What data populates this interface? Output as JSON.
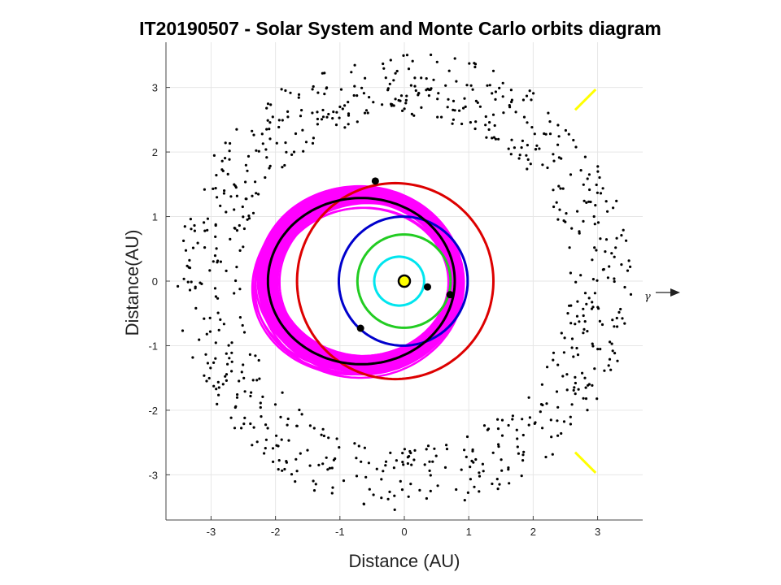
{
  "chart_data": {
    "type": "scatter",
    "title": "IT20190507 - Solar System and Monte Carlo orbits diagram",
    "xlabel": "Distance (AU)",
    "ylabel": "Distance(AU)",
    "xlim": [
      -3.7,
      3.7
    ],
    "ylim": [
      -3.7,
      3.7
    ],
    "xticks": [
      "-3",
      "-2",
      "-1",
      "0",
      "1",
      "2",
      "3"
    ],
    "yticks": [
      "-3",
      "-2",
      "-1",
      "0",
      "1",
      "2",
      "3"
    ],
    "grid": true,
    "equinox_label": "γ",
    "sun": {
      "x": 0,
      "y": 0,
      "color": "#ffff00"
    },
    "planet_orbits": [
      {
        "a": 0.387,
        "e": 0.206,
        "color": "#00e5ee"
      },
      {
        "a": 0.723,
        "e": 0.007,
        "color": "#22cc22"
      },
      {
        "a": 1.0,
        "e": 0.017,
        "color": "#0000cc"
      },
      {
        "a": 1.524,
        "e": 0.093,
        "color": "#dd0000"
      }
    ],
    "planet_positions": [
      {
        "x": 0.36,
        "y": -0.09
      },
      {
        "x": 0.71,
        "y": -0.21
      },
      {
        "x": -0.68,
        "y": -0.73
      },
      {
        "x": -0.45,
        "y": 1.55
      }
    ],
    "monte_carlo_orbits": {
      "color": "#ff00ff",
      "count": 60,
      "a": [
        1.35,
        1.6
      ],
      "e": [
        0.4,
        0.52
      ],
      "perihelion_angle_deg": [
        -8,
        6
      ]
    },
    "object_orbit": {
      "a": 1.45,
      "e": 0.46,
      "perihelion_angle_deg": 0,
      "color": "#000000"
    },
    "outer_swarm": {
      "count": 750,
      "r_min": 2.55,
      "r_max": 3.55,
      "color": "#000000"
    },
    "perihelion_markers": {
      "color": "#ffff00",
      "angle_deg": [
        45,
        -45
      ],
      "r_in": 3.75,
      "r_out": 4.2
    }
  }
}
